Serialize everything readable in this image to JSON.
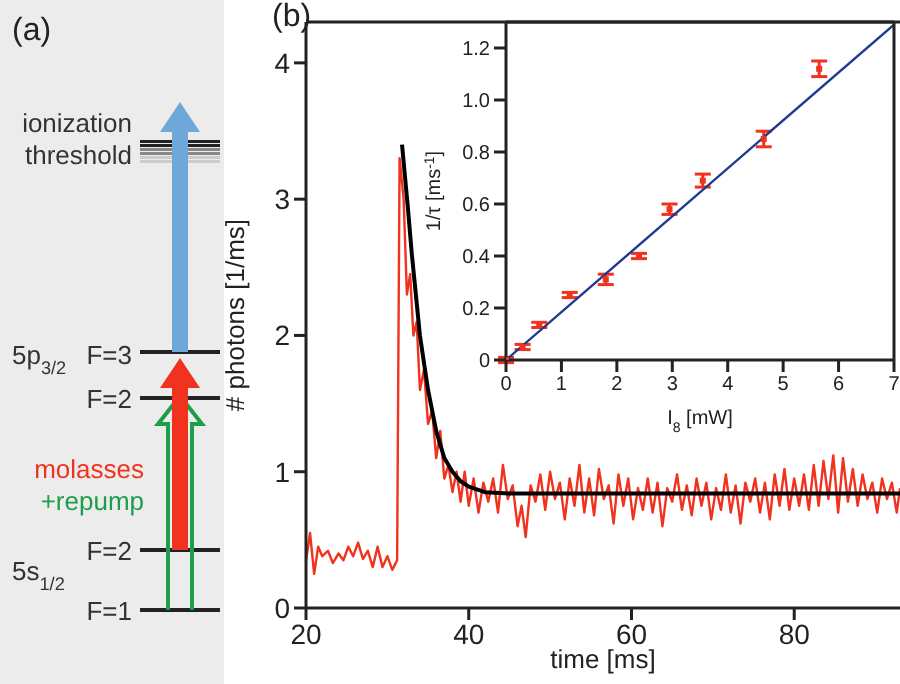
{
  "chart_data": [
    {
      "type": "other",
      "title": "(a)",
      "annotations": [
        "ionization",
        "threshold",
        "5p$_{3/2}$",
        "F=3",
        "F=2",
        "molasses",
        "+repump",
        "F=2",
        "5s$_{1/2}$",
        "F=1"
      ]
    },
    {
      "type": "line",
      "title": "(b)",
      "xlabel": "time [ms]",
      "ylabel": "# photons [1/ms]",
      "xlim": [
        20,
        93
      ],
      "xticks": [
        20,
        40,
        60,
        80
      ],
      "ylim": [
        0,
        4.3
      ],
      "yticks": [
        0,
        1,
        2,
        3,
        4
      ],
      "series": [
        {
          "type": "line",
          "color": "#f0321e",
          "x": [
            20,
            20.5,
            21,
            21.5,
            22,
            22.7,
            23.3,
            24,
            24.6,
            25.2,
            25.8,
            26.4,
            27,
            27.6,
            28.2,
            28.8,
            29.4,
            30,
            30.6,
            31.2,
            31.5,
            32,
            32.4,
            32.8,
            33.2,
            33.6,
            34,
            34.5,
            35,
            35.5,
            36,
            36.5,
            37,
            37.5,
            38,
            38.5,
            39,
            39.5,
            40,
            40.6,
            41.2,
            41.8,
            42.4,
            43,
            43.6,
            44.2,
            44.8,
            45.4,
            46,
            46.5,
            47,
            47.6,
            48.2,
            48.8,
            49.4,
            50,
            50.6,
            51.2,
            51.8,
            52.4,
            53,
            53.6,
            54.2,
            54.8,
            55.4,
            56,
            56.6,
            57.2,
            57.8,
            58.4,
            59,
            59.6,
            60.2,
            60.8,
            61.4,
            62,
            62.6,
            63.2,
            63.8,
            64.4,
            65,
            65.6,
            66.2,
            66.8,
            67.4,
            68,
            68.6,
            69.2,
            69.8,
            70.4,
            71,
            71.6,
            72.2,
            72.8,
            73.4,
            74,
            74.6,
            75.2,
            75.8,
            76.4,
            77,
            77.6,
            78.2,
            78.8,
            79.4,
            80,
            80.6,
            81.2,
            81.8,
            82.4,
            83,
            83.6,
            84.2,
            84.8,
            85.4,
            86,
            86.6,
            87.2,
            87.8,
            88.4,
            89,
            89.6,
            90.2,
            90.8,
            91.4,
            92,
            92.6,
            93
          ],
          "values": [
            0.35,
            0.55,
            0.25,
            0.45,
            0.38,
            0.42,
            0.33,
            0.4,
            0.35,
            0.45,
            0.38,
            0.48,
            0.36,
            0.42,
            0.3,
            0.45,
            0.3,
            0.38,
            0.28,
            0.35,
            3.3,
            3.0,
            2.3,
            2.45,
            2.0,
            2.1,
            1.6,
            1.75,
            1.35,
            1.45,
            1.1,
            1.3,
            0.95,
            1.05,
            0.85,
            1.0,
            0.78,
            1.0,
            0.75,
            0.95,
            0.7,
            0.92,
            0.78,
            0.95,
            0.7,
            1.05,
            0.8,
            0.9,
            0.6,
            0.75,
            0.52,
            0.9,
            0.78,
            0.98,
            0.72,
            1.0,
            0.8,
            0.92,
            0.65,
            0.95,
            0.75,
            1.05,
            0.7,
            0.95,
            0.68,
            1.02,
            0.8,
            0.9,
            0.62,
            0.98,
            0.75,
            0.95,
            0.65,
            0.88,
            0.72,
            0.95,
            0.7,
            0.92,
            0.6,
            0.88,
            0.78,
            0.98,
            0.72,
            0.9,
            0.68,
            0.95,
            0.75,
            0.92,
            0.65,
            0.88,
            0.72,
            0.98,
            0.7,
            0.9,
            0.62,
            0.92,
            0.78,
            0.95,
            0.7,
            0.92,
            0.65,
            0.98,
            0.75,
            1.02,
            0.72,
            0.95,
            0.75,
            0.98,
            0.72,
            1.05,
            0.75,
            1.08,
            0.8,
            1.12,
            0.7,
            1.1,
            0.78,
            1.02,
            0.75,
            0.98,
            0.8,
            0.92,
            0.7,
            0.95,
            0.8,
            0.92,
            0.7,
            0.88
          ]
        },
        {
          "type": "line",
          "color": "#000000",
          "x": [
            31.8,
            32.5,
            33,
            33.5,
            34,
            34.5,
            35,
            36,
            37,
            38,
            39,
            40,
            42,
            45,
            50,
            93
          ],
          "values": [
            3.4,
            2.95,
            2.6,
            2.3,
            2.0,
            1.8,
            1.6,
            1.3,
            1.1,
            1.0,
            0.93,
            0.89,
            0.85,
            0.84,
            0.84,
            0.84
          ]
        }
      ]
    },
    {
      "type": "scatter",
      "xlabel": "I$_{8}$ [mW]",
      "ylabel": "1/τ [ms$^{-1}$]",
      "xlim": [
        0,
        7
      ],
      "xticks": [
        0,
        1,
        2,
        3,
        4,
        5,
        6,
        7
      ],
      "ylim": [
        0,
        1.3
      ],
      "yticks": [
        0,
        0.2,
        0.4,
        0.6,
        0.8,
        {
          "value": 1,
          "label": "1.0"
        },
        1.2
      ],
      "series": [
        {
          "type": "scatter",
          "marker": "square",
          "color": "#f0321e",
          "x": [
            0,
            0.3,
            0.6,
            1.15,
            1.8,
            2.4,
            2.95,
            3.55,
            4.65,
            5.65
          ],
          "values": [
            0,
            0.05,
            0.135,
            0.25,
            0.31,
            0.4,
            0.58,
            0.69,
            0.85,
            1.12
          ],
          "errors": [
            0.01,
            0.01,
            0.01,
            0.01,
            0.02,
            0.01,
            0.02,
            0.025,
            0.03,
            0.03
          ]
        },
        {
          "type": "line",
          "color": "#1f3a8f",
          "x": [
            0,
            7
          ],
          "values": [
            0,
            1.29
          ]
        }
      ]
    }
  ]
}
